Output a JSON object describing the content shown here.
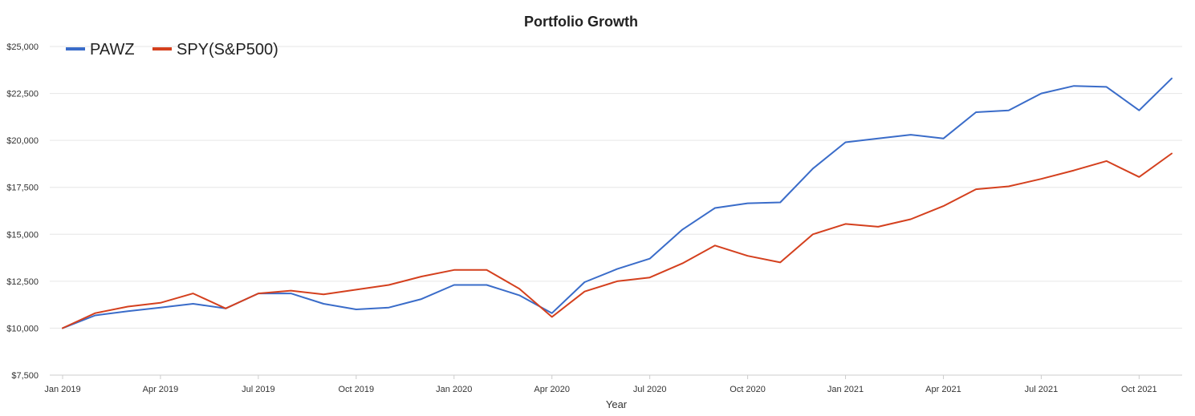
{
  "chart_data": {
    "type": "line",
    "title": "Portfolio Growth",
    "xlabel": "Year",
    "ylabel": "",
    "ylim": [
      7500,
      25000
    ],
    "y_ticks": [
      7500,
      10000,
      12500,
      15000,
      17500,
      20000,
      22500,
      25000
    ],
    "y_tick_labels": [
      "$7,500",
      "$10,000",
      "$12,500",
      "$15,000",
      "$17,500",
      "$20,000",
      "$22,500",
      "$25,000"
    ],
    "x_tick_labels": [
      "Jan 2019",
      "Apr 2019",
      "Jul 2019",
      "Oct 2019",
      "Jan 2020",
      "Apr 2020",
      "Jul 2020",
      "Oct 2020",
      "Jan 2021",
      "Apr 2021",
      "Jul 2021",
      "Oct 2021"
    ],
    "x_tick_indices": [
      0,
      3,
      6,
      9,
      12,
      15,
      18,
      21,
      24,
      27,
      30,
      33
    ],
    "x": [
      "2019-01",
      "2019-02",
      "2019-03",
      "2019-04",
      "2019-05",
      "2019-06",
      "2019-07",
      "2019-08",
      "2019-09",
      "2019-10",
      "2019-11",
      "2019-12",
      "2020-01",
      "2020-02",
      "2020-03",
      "2020-04",
      "2020-05",
      "2020-06",
      "2020-07",
      "2020-08",
      "2020-09",
      "2020-10",
      "2020-11",
      "2020-12",
      "2021-01",
      "2021-02",
      "2021-03",
      "2021-04",
      "2021-05",
      "2021-06",
      "2021-07",
      "2021-08",
      "2021-09",
      "2021-10",
      "2021-11"
    ],
    "grid": true,
    "legend_position": "top-left",
    "series": [
      {
        "name": "PAWZ",
        "color": "#3a6cc9",
        "values": [
          10000,
          10680,
          10900,
          11100,
          11300,
          11050,
          11850,
          11850,
          11300,
          11000,
          11100,
          11550,
          12300,
          12300,
          11750,
          10800,
          12450,
          13150,
          13700,
          15250,
          16400,
          16650,
          16700,
          18500,
          19900,
          20100,
          20300,
          20100,
          21500,
          21600,
          22500,
          22900,
          22850,
          21600,
          23300
        ]
      },
      {
        "name": "SPY(S&P500)",
        "color": "#d4401e",
        "values": [
          10000,
          10800,
          11150,
          11350,
          11850,
          11050,
          11850,
          12000,
          11800,
          12050,
          12300,
          12750,
          13100,
          13100,
          12100,
          10600,
          11950,
          12500,
          12700,
          13450,
          14400,
          13850,
          13500,
          15000,
          15550,
          15400,
          15800,
          16500,
          17400,
          17550,
          17950,
          18400,
          18900,
          18050,
          19300
        ]
      }
    ]
  }
}
